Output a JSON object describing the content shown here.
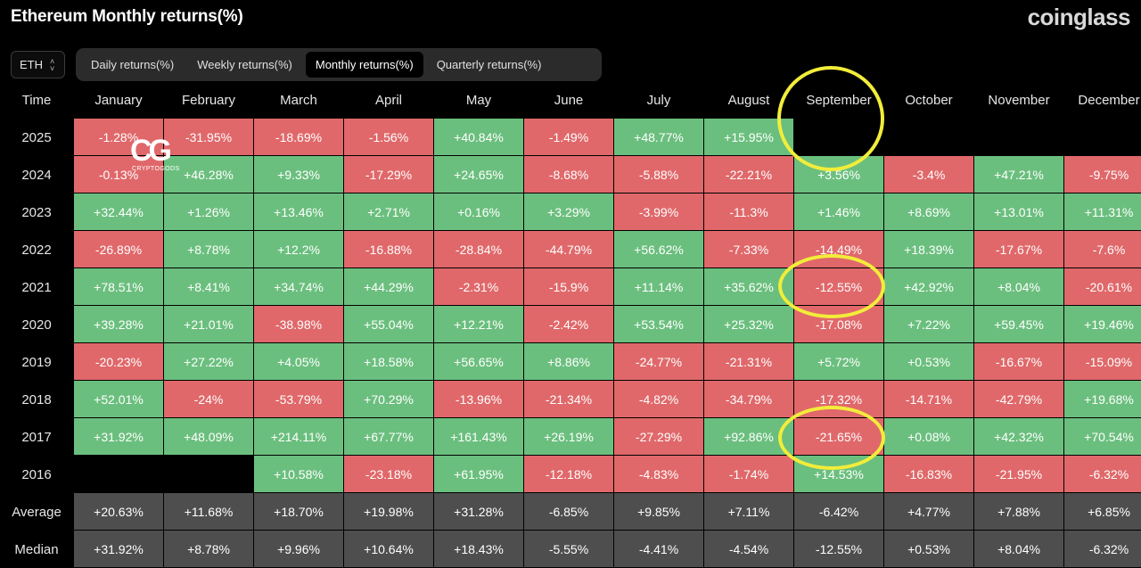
{
  "page": {
    "title": "Ethereum Monthly returns(%)",
    "brand": "coinglass",
    "asset": "ETH"
  },
  "tabs": [
    {
      "label": "Daily returns(%)",
      "active": false
    },
    {
      "label": "Weekly returns(%)",
      "active": false
    },
    {
      "label": "Monthly returns(%)",
      "active": true
    },
    {
      "label": "Quarterly returns(%)",
      "active": false
    }
  ],
  "table": {
    "corner": "Time",
    "months": [
      "January",
      "February",
      "March",
      "April",
      "May",
      "June",
      "July",
      "August",
      "September",
      "October",
      "November",
      "December"
    ],
    "rows": [
      {
        "year": "2025",
        "values": [
          "-1.28%",
          "-31.95%",
          "-18.69%",
          "-1.56%",
          "+40.84%",
          "-1.49%",
          "+48.77%",
          "+15.95%",
          "",
          "",
          "",
          ""
        ]
      },
      {
        "year": "2024",
        "values": [
          "-0.13%",
          "+46.28%",
          "+9.33%",
          "-17.29%",
          "+24.65%",
          "-8.68%",
          "-5.88%",
          "-22.21%",
          "+3.56%",
          "-3.4%",
          "+47.21%",
          "-9.75%"
        ]
      },
      {
        "year": "2023",
        "values": [
          "+32.44%",
          "+1.26%",
          "+13.46%",
          "+2.71%",
          "+0.16%",
          "+3.29%",
          "-3.99%",
          "-11.3%",
          "+1.46%",
          "+8.69%",
          "+13.01%",
          "+11.31%"
        ]
      },
      {
        "year": "2022",
        "values": [
          "-26.89%",
          "+8.78%",
          "+12.2%",
          "-16.88%",
          "-28.84%",
          "-44.79%",
          "+56.62%",
          "-7.33%",
          "-14.49%",
          "+18.39%",
          "-17.67%",
          "-7.6%"
        ]
      },
      {
        "year": "2021",
        "values": [
          "+78.51%",
          "+8.41%",
          "+34.74%",
          "+44.29%",
          "-2.31%",
          "-15.9%",
          "+11.14%",
          "+35.62%",
          "-12.55%",
          "+42.92%",
          "+8.04%",
          "-20.61%"
        ]
      },
      {
        "year": "2020",
        "values": [
          "+39.28%",
          "+21.01%",
          "-38.98%",
          "+55.04%",
          "+12.21%",
          "-2.42%",
          "+53.54%",
          "+25.32%",
          "-17.08%",
          "+7.22%",
          "+59.45%",
          "+19.46%"
        ]
      },
      {
        "year": "2019",
        "values": [
          "-20.23%",
          "+27.22%",
          "+4.05%",
          "+18.58%",
          "+56.65%",
          "+8.86%",
          "-24.77%",
          "-21.31%",
          "+5.72%",
          "+0.53%",
          "-16.67%",
          "-15.09%"
        ]
      },
      {
        "year": "2018",
        "values": [
          "+52.01%",
          "-24%",
          "-53.79%",
          "+70.29%",
          "-13.96%",
          "-21.34%",
          "-4.82%",
          "-34.79%",
          "-17.32%",
          "-14.71%",
          "-42.79%",
          "+19.68%"
        ]
      },
      {
        "year": "2017",
        "values": [
          "+31.92%",
          "+48.09%",
          "+214.11%",
          "+67.77%",
          "+161.43%",
          "+26.19%",
          "-27.29%",
          "+92.86%",
          "-21.65%",
          "+0.08%",
          "+42.32%",
          "+70.54%"
        ]
      },
      {
        "year": "2016",
        "values": [
          "",
          "",
          "+10.58%",
          "-23.18%",
          "+61.95%",
          "-12.18%",
          "-4.83%",
          "-1.74%",
          "+14.53%",
          "-16.83%",
          "-21.95%",
          "-6.32%"
        ]
      }
    ],
    "stats": [
      {
        "label": "Average",
        "values": [
          "+20.63%",
          "+11.68%",
          "+18.70%",
          "+19.98%",
          "+31.28%",
          "-6.85%",
          "+9.85%",
          "+7.11%",
          "-6.42%",
          "+4.77%",
          "+7.88%",
          "+6.85%"
        ]
      },
      {
        "label": "Median",
        "values": [
          "+31.92%",
          "+8.78%",
          "+9.96%",
          "+10.64%",
          "+18.43%",
          "-5.55%",
          "-4.41%",
          "-4.54%",
          "-12.55%",
          "+0.53%",
          "+8.04%",
          "-6.32%"
        ]
      }
    ]
  },
  "watermark": {
    "mark": "CG",
    "text": "CRYPTOGODS"
  },
  "colors": {
    "positive": "#6bbf7e",
    "negative": "#e0686a",
    "stat": "#4e4e4e",
    "highlight": "#f2ed3a"
  }
}
